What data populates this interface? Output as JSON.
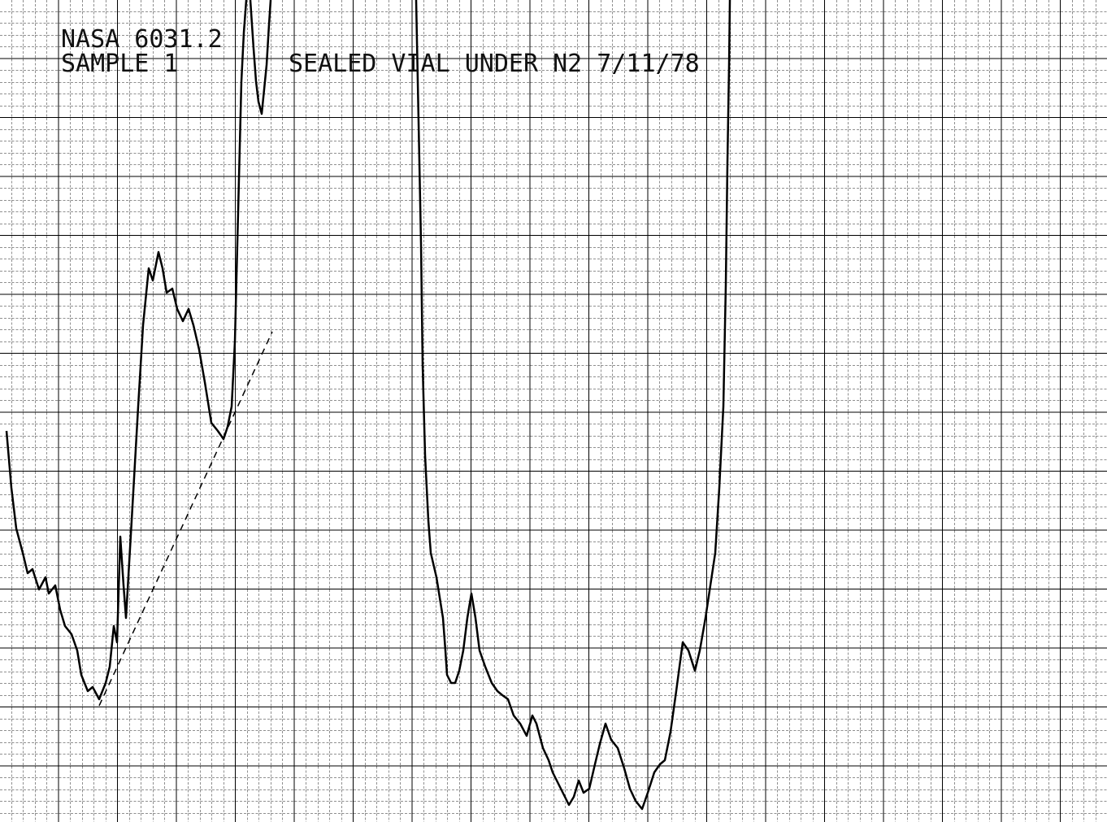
{
  "header": {
    "title": "NASA 6031.2",
    "sample": "SAMPLE 1",
    "note": "SEALED VIAL UNDER N2 7/11/78"
  }
}
